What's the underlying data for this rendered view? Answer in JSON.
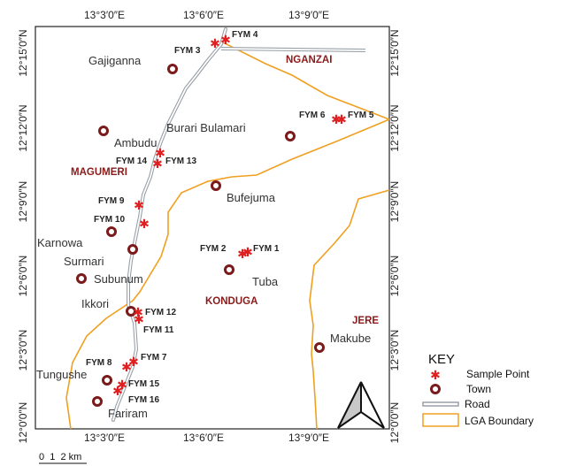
{
  "axis_labels": {
    "lon_ticks": [
      "13°3′0″E",
      "13°6′0″E",
      "13°9′0″E"
    ],
    "lat_ticks": [
      "12°15′0″N",
      "12°12′0″N",
      "12°9′0″N",
      "12°6′0″N",
      "12°3′0″N",
      "12°0′0″N"
    ]
  },
  "towns": [
    "Gajiganna",
    "Ambudu",
    "Burari Bulamari",
    "Bufejuma",
    "Karnowa",
    "Surmari",
    "Subunum",
    "Tuba",
    "Ikkori",
    "Makube",
    "Tungushe",
    "Fariram"
  ],
  "lga_names": [
    "NGANZAI",
    "MAGUMERI",
    "KONDUGA",
    "JERE"
  ],
  "sample_points": [
    "FYM 1",
    "FYM 2",
    "FYM 3",
    "FYM 4",
    "FYM 5",
    "FYM 6",
    "FYM 7",
    "FYM 8",
    "FYM 9",
    "FYM 10",
    "FYM 11",
    "FYM 12",
    "FYM 13",
    "FYM 14",
    "FYM 15",
    "FYM 16"
  ],
  "key": {
    "title": "KEY",
    "sample_point": "Sample Point",
    "town": "Town",
    "road": "Road",
    "lga_boundary": "LGA Boundary"
  },
  "scale": {
    "label": "0  1  2 km"
  },
  "colors": {
    "lga_boundary": "#f0a020",
    "road": "#9aa0a8",
    "sample_point": "#e02020",
    "town": "#7a1a1a",
    "lga_label": "#8b1a1a"
  },
  "icons": {
    "north_arrow": "north-arrow-icon"
  }
}
